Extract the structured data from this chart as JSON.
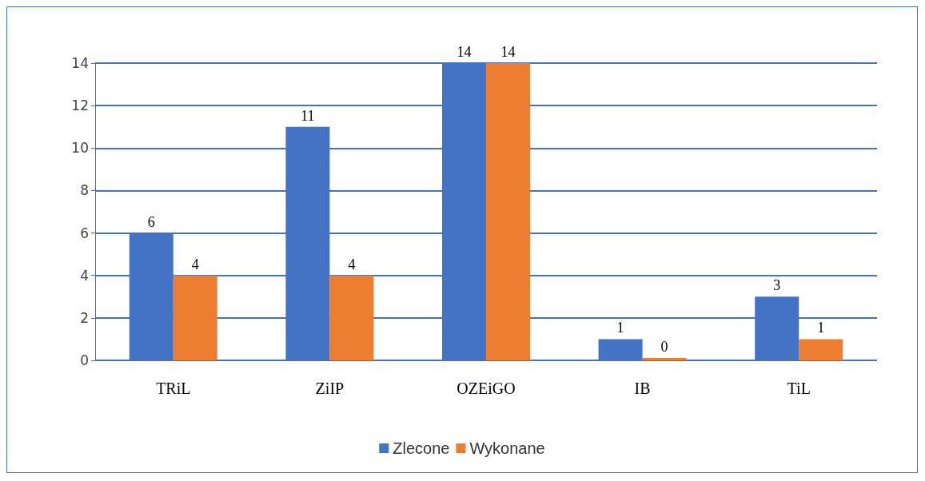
{
  "chart_data": {
    "type": "bar",
    "categories": [
      "TRiL",
      "ZiIP",
      "OZEiGO",
      "IB",
      "TiL"
    ],
    "series": [
      {
        "name": "Zlecone",
        "color": "#4472c4",
        "values": [
          6,
          11,
          14,
          1,
          3
        ]
      },
      {
        "name": "Wykonane",
        "color": "#ed7d31",
        "values": [
          4,
          4,
          14,
          0,
          1
        ]
      }
    ],
    "ylim": [
      0,
      14
    ],
    "yticks": [
      0,
      2,
      4,
      6,
      8,
      10,
      12,
      14
    ],
    "grid": "y",
    "legend": "bottom",
    "data_labels": true
  }
}
